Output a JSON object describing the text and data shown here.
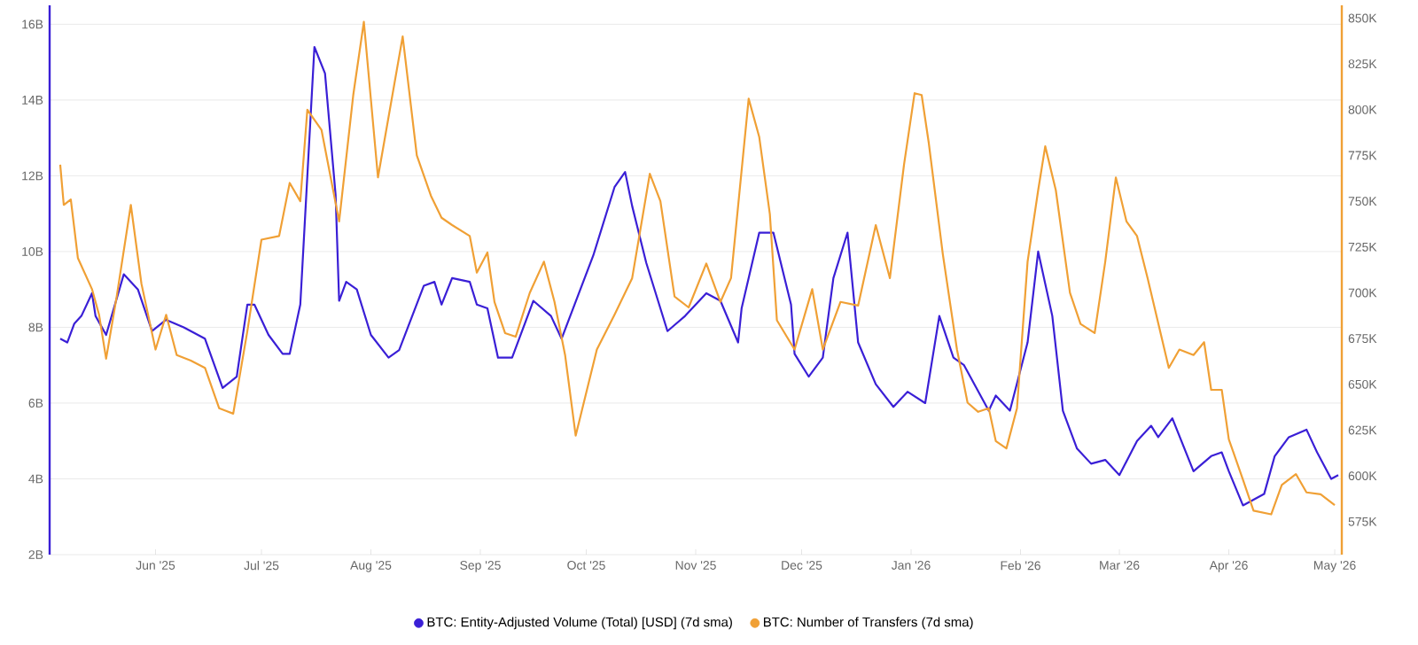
{
  "chart_data": {
    "type": "line",
    "grid": "y",
    "legend": "bottom",
    "xlim": [
      "2025-05-02",
      "2026-05-03"
    ],
    "xticks": [
      {
        "value": "2025-06-01",
        "label": "Jun '25"
      },
      {
        "value": "2025-07-01",
        "label": "Jul '25"
      },
      {
        "value": "2025-08-01",
        "label": "Aug '25"
      },
      {
        "value": "2025-09-01",
        "label": "Sep '25"
      },
      {
        "value": "2025-10-01",
        "label": "Oct '25"
      },
      {
        "value": "2025-11-01",
        "label": "Nov '25"
      },
      {
        "value": "2025-12-01",
        "label": "Dec '25"
      },
      {
        "value": "2026-01-01",
        "label": "Jan '26"
      },
      {
        "value": "2026-02-01",
        "label": "Feb '26"
      },
      {
        "value": "2026-03-01",
        "label": "Mar '26"
      },
      {
        "value": "2026-04-01",
        "label": "Apr '26"
      },
      {
        "value": "2026-05-01",
        "label": "May '26"
      }
    ],
    "ylim": [
      2,
      16.5
    ],
    "yticks": [
      {
        "value": 2,
        "label": "2B"
      },
      {
        "value": 4,
        "label": "4B"
      },
      {
        "value": 6,
        "label": "6B"
      },
      {
        "value": 8,
        "label": "8B"
      },
      {
        "value": 10,
        "label": "10B"
      },
      {
        "value": 12,
        "label": "12B"
      },
      {
        "value": 14,
        "label": "14B"
      },
      {
        "value": 16,
        "label": "16B"
      }
    ],
    "y2lim": [
      557,
      857
    ],
    "y2ticks": [
      {
        "value": 575,
        "label": "575K"
      },
      {
        "value": 600,
        "label": "600K"
      },
      {
        "value": 625,
        "label": "625K"
      },
      {
        "value": 650,
        "label": "650K"
      },
      {
        "value": 675,
        "label": "675K"
      },
      {
        "value": 700,
        "label": "700K"
      },
      {
        "value": 725,
        "label": "725K"
      },
      {
        "value": 750,
        "label": "750K"
      },
      {
        "value": 775,
        "label": "775K"
      },
      {
        "value": 800,
        "label": "800K"
      },
      {
        "value": 825,
        "label": "825K"
      },
      {
        "value": 850,
        "label": "850K"
      }
    ],
    "series": [
      {
        "name": "BTC: Entity-Adjusted Volume (Total) [USD] (7d sma)",
        "color": "#3a1fd6",
        "x": [
          "2025-05-05",
          "2025-05-07",
          "2025-05-09",
          "2025-05-11",
          "2025-05-14",
          "2025-05-15",
          "2025-05-18",
          "2025-05-23",
          "2025-05-27",
          "2025-05-31",
          "2025-06-04",
          "2025-06-09",
          "2025-06-15",
          "2025-06-20",
          "2025-06-24",
          "2025-06-27",
          "2025-06-29",
          "2025-07-03",
          "2025-07-07",
          "2025-07-09",
          "2025-07-12",
          "2025-07-16",
          "2025-07-19",
          "2025-07-22",
          "2025-07-23",
          "2025-07-25",
          "2025-07-28",
          "2025-08-01",
          "2025-08-06",
          "2025-08-09",
          "2025-08-16",
          "2025-08-19",
          "2025-08-21",
          "2025-08-24",
          "2025-08-29",
          "2025-08-31",
          "2025-09-03",
          "2025-09-06",
          "2025-09-10",
          "2025-09-16",
          "2025-09-21",
          "2025-09-24",
          "2025-10-03",
          "2025-10-09",
          "2025-10-12",
          "2025-10-14",
          "2025-10-18",
          "2025-10-24",
          "2025-10-29",
          "2025-11-04",
          "2025-11-08",
          "2025-11-13",
          "2025-11-14",
          "2025-11-19",
          "2025-11-23",
          "2025-11-28",
          "2025-11-29",
          "2025-12-03",
          "2025-12-07",
          "2025-12-10",
          "2025-12-14",
          "2025-12-17",
          "2025-12-22",
          "2025-12-27",
          "2025-12-31",
          "2026-01-05",
          "2026-01-09",
          "2026-01-13",
          "2026-01-16",
          "2026-01-23",
          "2026-01-25",
          "2026-01-29",
          "2026-02-03",
          "2026-02-06",
          "2026-02-10",
          "2026-02-13",
          "2026-02-17",
          "2026-02-21",
          "2026-02-25",
          "2026-03-01",
          "2026-03-06",
          "2026-03-10",
          "2026-03-12",
          "2026-03-16",
          "2026-03-22",
          "2026-03-27",
          "2026-03-30",
          "2026-04-01",
          "2026-04-05",
          "2026-04-11",
          "2026-04-14",
          "2026-04-18",
          "2026-04-23",
          "2026-04-26",
          "2026-04-30",
          "2026-05-02"
        ],
        "values": [
          7.7,
          7.6,
          8.1,
          8.3,
          8.9,
          8.3,
          7.8,
          9.4,
          9.0,
          7.9,
          8.2,
          8.0,
          7.7,
          6.4,
          6.7,
          8.6,
          8.6,
          7.8,
          7.3,
          7.3,
          8.6,
          15.4,
          14.7,
          11.5,
          8.7,
          9.2,
          9.0,
          7.8,
          7.2,
          7.4,
          9.1,
          9.2,
          8.6,
          9.3,
          9.2,
          8.6,
          8.5,
          7.2,
          7.2,
          8.7,
          8.3,
          7.7,
          9.9,
          11.7,
          12.1,
          11.2,
          9.7,
          7.9,
          8.3,
          8.9,
          8.7,
          7.6,
          8.5,
          10.5,
          10.5,
          8.6,
          7.3,
          6.7,
          7.2,
          9.3,
          10.5,
          7.6,
          6.5,
          5.9,
          6.3,
          6.0,
          8.3,
          7.2,
          7.0,
          5.8,
          6.2,
          5.8,
          7.6,
          10.0,
          8.3,
          5.8,
          4.8,
          4.4,
          4.5,
          4.1,
          5.0,
          5.4,
          5.1,
          5.6,
          4.2,
          4.6,
          4.7,
          4.2,
          3.3,
          3.6,
          4.6,
          5.1,
          5.3,
          4.7,
          4.0,
          4.1
        ]
      },
      {
        "name": "BTC: Number of Transfers (7d sma)",
        "color": "#f0a035",
        "axis": "y2",
        "x": [
          "2025-05-05",
          "2025-05-06",
          "2025-05-08",
          "2025-05-10",
          "2025-05-14",
          "2025-05-16",
          "2025-05-18",
          "2025-05-21",
          "2025-05-25",
          "2025-05-28",
          "2025-06-01",
          "2025-06-04",
          "2025-06-07",
          "2025-06-11",
          "2025-06-15",
          "2025-06-19",
          "2025-06-23",
          "2025-06-27",
          "2025-07-01",
          "2025-07-06",
          "2025-07-09",
          "2025-07-12",
          "2025-07-14",
          "2025-07-18",
          "2025-07-23",
          "2025-07-27",
          "2025-07-30",
          "2025-08-03",
          "2025-08-10",
          "2025-08-14",
          "2025-08-18",
          "2025-08-21",
          "2025-08-24",
          "2025-08-29",
          "2025-08-31",
          "2025-09-03",
          "2025-09-05",
          "2025-09-08",
          "2025-09-11",
          "2025-09-15",
          "2025-09-19",
          "2025-09-22",
          "2025-09-25",
          "2025-09-28",
          "2025-10-04",
          "2025-10-09",
          "2025-10-14",
          "2025-10-19",
          "2025-10-22",
          "2025-10-26",
          "2025-10-30",
          "2025-11-04",
          "2025-11-08",
          "2025-11-11",
          "2025-11-16",
          "2025-11-19",
          "2025-11-22",
          "2025-11-24",
          "2025-11-29",
          "2025-12-04",
          "2025-12-07",
          "2025-12-12",
          "2025-12-17",
          "2025-12-22",
          "2025-12-26",
          "2025-12-30",
          "2026-01-02",
          "2026-01-04",
          "2026-01-06",
          "2026-01-10",
          "2026-01-14",
          "2026-01-17",
          "2026-01-20",
          "2026-01-23",
          "2026-01-25",
          "2026-01-28",
          "2026-01-31",
          "2026-02-03",
          "2026-02-06",
          "2026-02-08",
          "2026-02-11",
          "2026-02-15",
          "2026-02-18",
          "2026-02-22",
          "2026-02-25",
          "2026-02-28",
          "2026-03-03",
          "2026-03-06",
          "2026-03-09",
          "2026-03-15",
          "2026-03-18",
          "2026-03-22",
          "2026-03-25",
          "2026-03-27",
          "2026-03-30",
          "2026-04-01",
          "2026-04-05",
          "2026-04-08",
          "2026-04-13",
          "2026-04-16",
          "2026-04-20",
          "2026-04-23",
          "2026-04-27",
          "2026-05-01"
        ],
        "values": [
          770,
          748,
          751,
          719,
          702,
          688,
          664,
          698,
          748,
          705,
          669,
          688,
          666,
          663,
          659,
          637,
          634,
          679,
          729,
          731,
          760,
          750,
          800,
          789,
          739,
          808,
          848,
          763,
          840,
          775,
          753,
          741,
          737,
          731,
          711,
          722,
          695,
          678,
          676,
          700,
          717,
          695,
          666,
          622,
          669,
          688,
          708,
          765,
          750,
          698,
          692,
          716,
          695,
          708,
          806,
          785,
          743,
          685,
          669,
          702,
          669,
          695,
          693,
          737,
          708,
          770,
          809,
          808,
          782,
          721,
          669,
          640,
          635,
          637,
          619,
          615,
          637,
          717,
          756,
          780,
          756,
          700,
          683,
          678,
          717,
          763,
          739,
          731,
          708,
          659,
          669,
          666,
          673,
          647,
          647,
          620,
          598,
          581,
          579,
          595,
          601,
          591,
          590,
          584
        ]
      }
    ]
  }
}
